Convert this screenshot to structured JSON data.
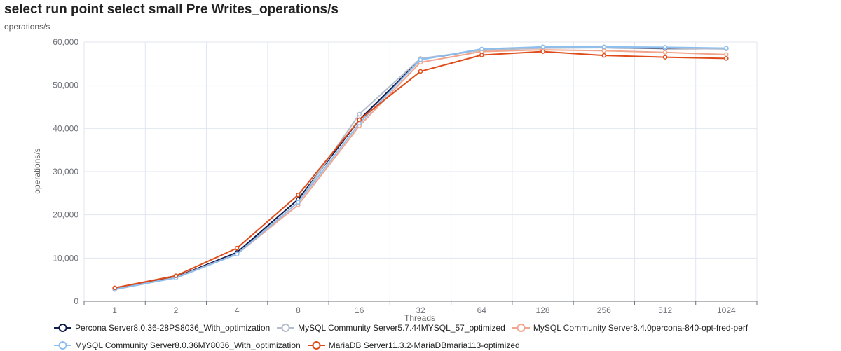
{
  "title": "select run point select small Pre Writes_operations/s",
  "unit_label": "operations/s",
  "chart_data": {
    "type": "line",
    "title": "select run point select small Pre Writes_operations/s",
    "xlabel": "Threads",
    "ylabel": "operations/s",
    "categories": [
      "1",
      "2",
      "4",
      "8",
      "16",
      "32",
      "64",
      "128",
      "256",
      "512",
      "1024"
    ],
    "ylim": [
      0,
      60000
    ],
    "yticks": [
      "0",
      "10,000",
      "20,000",
      "30,000",
      "40,000",
      "50,000",
      "60,000"
    ],
    "grid": true,
    "legend_position": "bottom",
    "series": [
      {
        "name": "Percona Server8.0.36-28PS8036_With_optimization",
        "color": "#0f1a4d",
        "values": [
          2900,
          5600,
          11300,
          23600,
          42000,
          56000,
          58200,
          58800,
          58700,
          58500,
          58500
        ]
      },
      {
        "name": "MySQL Community Server5.7.44MYSQL_57_optimized",
        "color": "#b5bccc",
        "values": [
          2700,
          5500,
          11000,
          22900,
          43300,
          56200,
          58100,
          58600,
          58700,
          58600,
          58400
        ]
      },
      {
        "name": "MySQL Community Server8.4.0percona-840-opt-fred-perf",
        "color": "#f2a48c",
        "values": [
          2800,
          5500,
          10900,
          22300,
          40600,
          55300,
          57800,
          58200,
          58000,
          57600,
          57100
        ]
      },
      {
        "name": "MySQL Community Server8.0.36MY8036_With_optimization",
        "color": "#8cbff0",
        "values": [
          2800,
          5400,
          10900,
          22900,
          41200,
          55900,
          58400,
          58900,
          58900,
          58800,
          58600
        ]
      },
      {
        "name": "MariaDB Server11.3.2-MariaDBmaria113-optimized",
        "color": "#e04b1a",
        "values": [
          3100,
          5900,
          12300,
          24600,
          42000,
          53200,
          57000,
          57800,
          56900,
          56500,
          56200
        ]
      }
    ]
  }
}
